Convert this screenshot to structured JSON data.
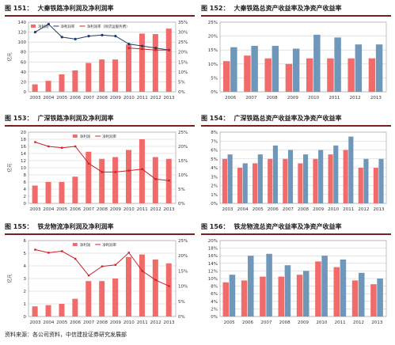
{
  "colors": {
    "bar_red": "#f26b6b",
    "bar_blue": "#6e97b9",
    "line_dark": "#1f3a68",
    "line_red": "#c9232a"
  },
  "source": "资料来源：各公司资料，中信建投证券研究发展部",
  "charts": [
    {
      "num": "图 151：",
      "title": "大秦铁路净利润及净利润率",
      "chart_data": {
        "type": "bar+line",
        "unit": "亿元",
        "categories": [
          "2003",
          "2004",
          "2005",
          "2006",
          "2007",
          "2008",
          "2009",
          "2010",
          "2011",
          "2012",
          "2013"
        ],
        "series": [
          {
            "name": "净利润",
            "type": "bar",
            "values": [
              15,
              22,
              35,
              43,
              58,
              65,
              65,
              95,
              117,
              116,
              127
            ]
          },
          {
            "name": "净利润率",
            "type": "line",
            "values": [
              30,
              34,
              27.5,
              26.5,
              28,
              28.5,
              28,
              24,
              23,
              22,
              21
            ]
          },
          {
            "name": "净利润率（除货运服务费）",
            "type": "line",
            "values": [
              null,
              null,
              null,
              null,
              null,
              null,
              null,
              22,
              21.5,
              21,
              21
            ]
          }
        ],
        "ylim_left": [
          0,
          140
        ],
        "yticks_left": [
          "0",
          "20",
          "40",
          "60",
          "80",
          "100",
          "120",
          "140"
        ],
        "ylim_right": [
          0,
          35
        ],
        "yticks_right": [
          "0%",
          "5%",
          "10%",
          "15%",
          "20%",
          "25%",
          "30%",
          "35%"
        ],
        "legend": "top-left"
      }
    },
    {
      "num": "图 152：",
      "title": "大秦铁路总资产收益率及净资产收益率",
      "chart_data": {
        "type": "bar",
        "categories": [
          "2006",
          "2007",
          "2008",
          "2009",
          "2010",
          "2011",
          "2012",
          "2013"
        ],
        "series": [
          {
            "name": "ROA",
            "values": [
              11,
              13,
              12,
              10,
              12,
              12,
              12,
              12
            ]
          },
          {
            "name": "ROE",
            "values": [
              16,
              16.5,
              16.5,
              15.5,
              20.5,
              19.5,
              17,
              17
            ]
          }
        ],
        "ylim": [
          0,
          25
        ],
        "yticks": [
          "0%",
          "5%",
          "10%",
          "15%",
          "20%",
          "25%"
        ]
      }
    },
    {
      "num": "图 153：",
      "title": "广深铁路净利润及净利润率",
      "chart_data": {
        "type": "bar+line",
        "unit": "亿元",
        "categories": [
          "2003",
          "2004",
          "2005",
          "2006",
          "2007",
          "2008",
          "2009",
          "2010",
          "2011",
          "2012",
          "2013"
        ],
        "series": [
          {
            "name": "净利润",
            "type": "bar",
            "values": [
              5,
              6,
              6,
              7.5,
              14.5,
              12.5,
              13,
              15,
              18,
              13,
              12.5
            ]
          },
          {
            "name": "净利润率",
            "type": "line",
            "values": [
              21.5,
              20,
              19.5,
              20,
              14,
              11,
              11,
              11.5,
              12,
              8.5,
              8
            ]
          }
        ],
        "ylim_left": [
          0,
          20
        ],
        "yticks_left": [
          "0",
          "2",
          "4",
          "6",
          "8",
          "10",
          "12",
          "14",
          "16",
          "18",
          "20"
        ],
        "ylim_right": [
          0,
          25
        ],
        "yticks_right": [
          "0%",
          "5%",
          "10%",
          "15%",
          "20%",
          "25%"
        ],
        "legend": "top-center"
      }
    },
    {
      "num": "图 154：",
      "title": "广深铁路总资产收益率及净资产收益率",
      "chart_data": {
        "type": "bar",
        "categories": [
          "2003",
          "2004",
          "2005",
          "2006",
          "2007",
          "2008",
          "2009",
          "2010",
          "2011",
          "2012",
          "2013"
        ],
        "series": [
          {
            "name": "ROA",
            "values": [
              5,
              4,
              4.5,
              5,
              5,
              4.5,
              5,
              5.5,
              6,
              4,
              4
            ]
          },
          {
            "name": "ROE",
            "values": [
              5.5,
              4.5,
              5.5,
              6.5,
              6,
              5.5,
              6,
              6.5,
              7.5,
              5,
              5
            ]
          }
        ],
        "ylim": [
          0,
          8
        ],
        "yticks": [
          "0%",
          "1%",
          "2%",
          "3%",
          "4%",
          "5%",
          "6%",
          "7%",
          "8%"
        ]
      }
    },
    {
      "num": "图 155：",
      "title": "铁龙物流净利润及净利润率",
      "chart_data": {
        "type": "bar+line",
        "unit": "亿元",
        "categories": [
          "2003",
          "2004",
          "2005",
          "2006",
          "2007",
          "2008",
          "2009",
          "2010",
          "2011",
          "2012",
          "2013"
        ],
        "series": [
          {
            "name": "净利润",
            "type": "bar",
            "values": [
              0.8,
              0.9,
              1.0,
              1.4,
              2.8,
              2.8,
              3.0,
              4.7,
              4.9,
              4.5,
              4.2
            ]
          },
          {
            "name": "净利润率",
            "type": "line",
            "values": [
              22,
              21,
              21.5,
              19,
              13.5,
              16.5,
              17,
              21,
              15,
              12,
              10
            ]
          }
        ],
        "ylim_left": [
          0,
          6
        ],
        "yticks_left": [
          "0",
          "1",
          "2",
          "3",
          "4",
          "5",
          "6"
        ],
        "ylim_right": [
          0,
          25
        ],
        "yticks_right": [
          "0%",
          "5%",
          "10%",
          "15%",
          "20%",
          "25%"
        ],
        "legend": "top-center"
      }
    },
    {
      "num": "图 156：",
      "title": "铁龙物流总资产收益率及净资产收益率",
      "chart_data": {
        "type": "bar",
        "categories": [
          "2005",
          "2006",
          "2007",
          "2008",
          "2009",
          "2010",
          "2011",
          "2012",
          "2013"
        ],
        "series": [
          {
            "name": "ROA",
            "values": [
              9,
              9.5,
              10.5,
              10.5,
              11,
              14.5,
              13,
              9.5,
              8.5
            ]
          },
          {
            "name": "ROE",
            "values": [
              11,
              16,
              16.5,
              13.5,
              12,
              16,
              15,
              11.5,
              10
            ]
          }
        ],
        "ylim": [
          0,
          20
        ],
        "yticks": [
          "0%",
          "2%",
          "4%",
          "6%",
          "8%",
          "10%",
          "12%",
          "14%",
          "16%",
          "18%",
          "20%"
        ]
      }
    }
  ]
}
